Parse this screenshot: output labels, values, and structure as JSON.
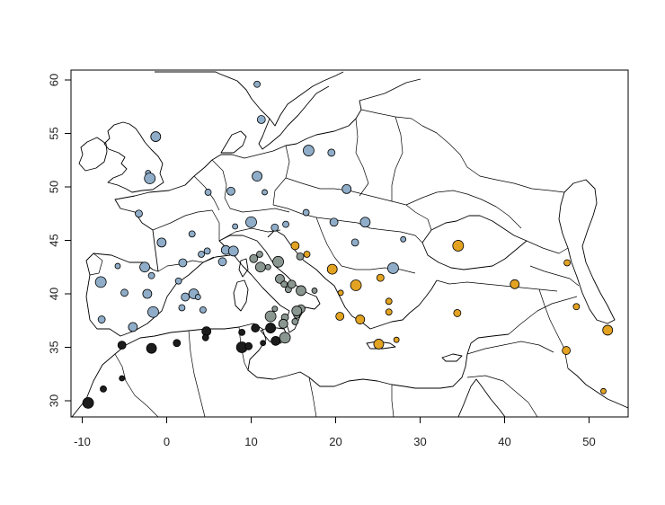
{
  "chart_data": {
    "type": "scatter",
    "title": "",
    "xlabel": "",
    "ylabel": "",
    "xlim": [
      -11,
      55
    ],
    "ylim": [
      28.5,
      61
    ],
    "x_ticks": [
      "-10",
      "0",
      "10",
      "20",
      "30",
      "40",
      "50"
    ],
    "y_ticks": [
      "30",
      "35",
      "40",
      "45",
      "50",
      "55",
      "60"
    ],
    "grid": false,
    "legend": "none",
    "basemap": "country borders and coastlines",
    "colors": {
      "blue": "#8fadc8",
      "gray": "#8a9690",
      "dark": "#1c1c1c",
      "orange": "#e3a322"
    },
    "series": [
      {
        "color_key": "blue",
        "points": [
          [
            10.7,
            59.6
          ],
          [
            11.2,
            56.3
          ],
          [
            -1.3,
            54.7
          ],
          [
            -2.2,
            51.3
          ],
          [
            -2.0,
            50.8
          ],
          [
            -3.3,
            47.5
          ],
          [
            -0.6,
            44.8
          ],
          [
            3.0,
            45.6
          ],
          [
            4.9,
            49.5
          ],
          [
            7.6,
            49.6
          ],
          [
            10.7,
            51.0
          ],
          [
            11.6,
            49.5
          ],
          [
            16.8,
            53.4
          ],
          [
            19.5,
            53.2
          ],
          [
            21.3,
            49.8
          ],
          [
            16.5,
            47.6
          ],
          [
            14.1,
            46.5
          ],
          [
            19.8,
            46.7
          ],
          [
            23.5,
            46.7
          ],
          [
            28.0,
            45.1
          ],
          [
            26.8,
            42.4
          ],
          [
            22.3,
            44.8
          ],
          [
            7.0,
            44.1
          ],
          [
            4.8,
            44.0
          ],
          [
            4.1,
            43.7
          ],
          [
            1.9,
            42.9
          ],
          [
            -2.6,
            42.5
          ],
          [
            -5.8,
            42.6
          ],
          [
            -7.8,
            41.1
          ],
          [
            -5.0,
            40.1
          ],
          [
            -2.3,
            40.0
          ],
          [
            -1.8,
            41.7
          ],
          [
            1.4,
            41.2
          ],
          [
            2.2,
            39.7
          ],
          [
            3.2,
            40.0
          ],
          [
            3.7,
            39.7
          ],
          [
            -1.6,
            38.3
          ],
          [
            -7.7,
            37.6
          ],
          [
            -4.0,
            36.9
          ],
          [
            4.3,
            38.5
          ],
          [
            1.8,
            38.7
          ],
          [
            6.6,
            43.0
          ],
          [
            7.9,
            44.0
          ],
          [
            8.1,
            46.3
          ],
          [
            10.0,
            46.7
          ],
          [
            12.8,
            46.2
          ]
        ]
      },
      {
        "color_key": "gray",
        "points": [
          [
            11.0,
            43.7
          ],
          [
            10.3,
            43.3
          ],
          [
            11.1,
            42.5
          ],
          [
            12.0,
            42.5
          ],
          [
            13.2,
            43.0
          ],
          [
            15.8,
            43.5
          ],
          [
            13.4,
            41.4
          ],
          [
            13.9,
            40.9
          ],
          [
            14.4,
            40.4
          ],
          [
            14.8,
            40.9
          ],
          [
            15.9,
            40.3
          ],
          [
            17.5,
            40.3
          ],
          [
            12.3,
            37.9
          ],
          [
            14.0,
            37.8
          ],
          [
            13.8,
            37.2
          ],
          [
            15.2,
            37.4
          ],
          [
            15.4,
            38.0
          ],
          [
            15.9,
            38.6
          ],
          [
            15.4,
            38.4
          ],
          [
            12.8,
            38.6
          ],
          [
            14.0,
            35.9
          ]
        ]
      },
      {
        "color_key": "dark",
        "points": [
          [
            -7.5,
            31.1
          ],
          [
            -5.3,
            35.2
          ],
          [
            -1.8,
            34.9
          ],
          [
            -5.3,
            32.1
          ],
          [
            -9.3,
            29.8
          ],
          [
            1.2,
            35.4
          ],
          [
            4.7,
            36.5
          ],
          [
            4.6,
            35.9
          ],
          [
            8.9,
            36.4
          ],
          [
            10.5,
            36.8
          ],
          [
            12.3,
            36.8
          ],
          [
            11.4,
            35.4
          ],
          [
            8.9,
            35.0
          ],
          [
            9.7,
            35.1
          ],
          [
            12.9,
            35.6
          ]
        ]
      },
      {
        "color_key": "orange",
        "points": [
          [
            16.6,
            43.7
          ],
          [
            15.2,
            44.5
          ],
          [
            19.6,
            42.3
          ],
          [
            20.6,
            40.1
          ],
          [
            22.4,
            40.8
          ],
          [
            25.3,
            41.5
          ],
          [
            22.9,
            37.6
          ],
          [
            26.3,
            38.3
          ],
          [
            26.3,
            39.3
          ],
          [
            20.5,
            37.9
          ],
          [
            25.1,
            35.3
          ],
          [
            27.2,
            35.7
          ],
          [
            34.5,
            44.5
          ],
          [
            34.4,
            38.2
          ],
          [
            41.2,
            40.9
          ],
          [
            47.4,
            42.9
          ],
          [
            48.5,
            38.8
          ],
          [
            47.3,
            34.7
          ],
          [
            52.2,
            36.6
          ],
          [
            51.7,
            30.9
          ]
        ]
      }
    ]
  }
}
